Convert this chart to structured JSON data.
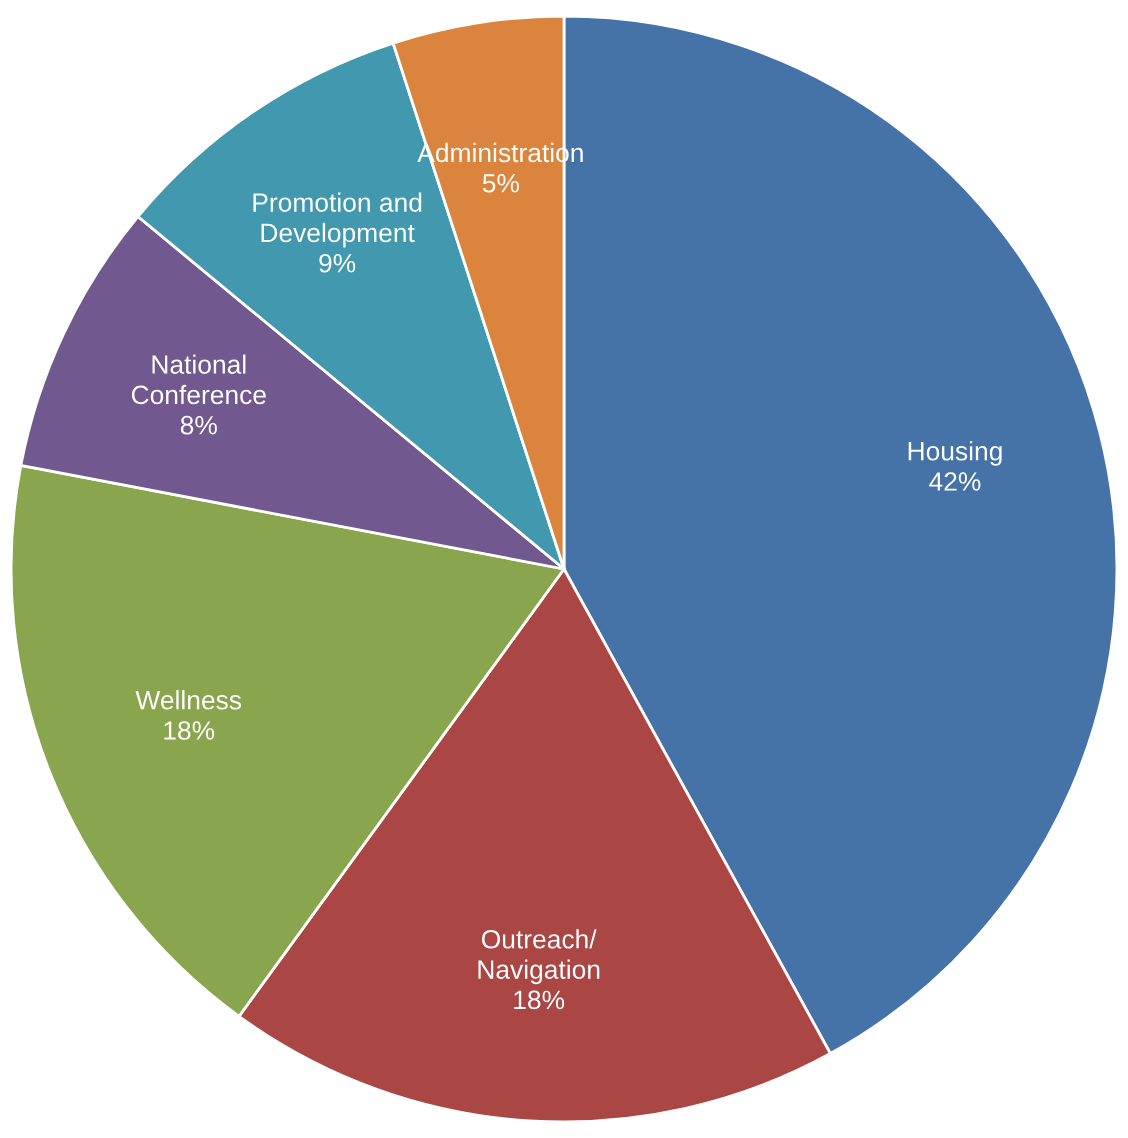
{
  "chart_data": {
    "type": "pie",
    "categories": [
      "Housing",
      "Outreach/\nNavigation",
      "Wellness",
      "National\nConference",
      "Promotion and\nDevelopment",
      "Administration"
    ],
    "values": [
      42,
      18,
      18,
      8,
      9,
      5
    ],
    "value_labels": [
      "42%",
      "18%",
      "18%",
      "8%",
      "9%",
      "5%"
    ],
    "colors": [
      "#4573a7",
      "#aa4644",
      "#89a54e",
      "#71588f",
      "#4198af",
      "#db843d"
    ]
  }
}
